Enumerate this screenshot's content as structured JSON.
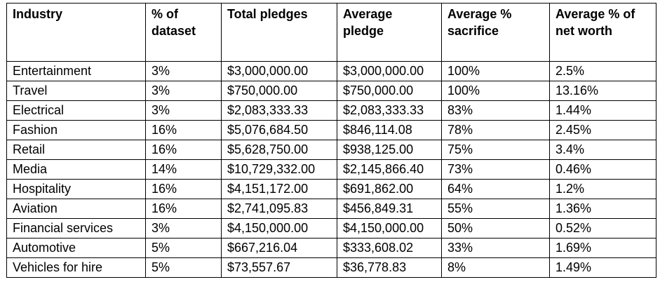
{
  "table": {
    "headers": [
      "Industry",
      "% of dataset",
      "Total pledges",
      "Average pledge",
      "Average % sacrifice",
      "Average % of net worth"
    ],
    "rows": [
      [
        "Entertainment",
        "3%",
        "$3,000,000.00",
        "$3,000,000.00",
        "100%",
        "2.5%"
      ],
      [
        "Travel",
        "3%",
        "$750,000.00",
        "$750,000.00",
        "100%",
        "13.16%"
      ],
      [
        "Electrical",
        "3%",
        "$2,083,333.33",
        "$2,083,333.33",
        "83%",
        "1.44%"
      ],
      [
        "Fashion",
        "16%",
        "$5,076,684.50",
        "$846,114.08",
        "78%",
        "2.45%"
      ],
      [
        "Retail",
        "16%",
        "$5,628,750.00",
        "$938,125.00",
        "75%",
        "3.4%"
      ],
      [
        "Media",
        "14%",
        "$10,729,332.00",
        "$2,145,866.40",
        "73%",
        "0.46%"
      ],
      [
        "Hospitality",
        "16%",
        "$4,151,172.00",
        "$691,862.00",
        "64%",
        "1.2%"
      ],
      [
        "Aviation",
        "16%",
        "$2,741,095.83",
        "$456,849.31",
        "55%",
        "1.36%"
      ],
      [
        "Financial services",
        "3%",
        "$4,150,000.00",
        "$4,150,000.00",
        "50%",
        "0.52%"
      ],
      [
        "Automotive",
        "5%",
        "$667,216.04",
        "$333,608.02",
        "33%",
        "1.69%"
      ],
      [
        "Vehicles for hire",
        "5%",
        "$73,557.67",
        "$36,778.83",
        "8%",
        "1.49%"
      ]
    ]
  }
}
